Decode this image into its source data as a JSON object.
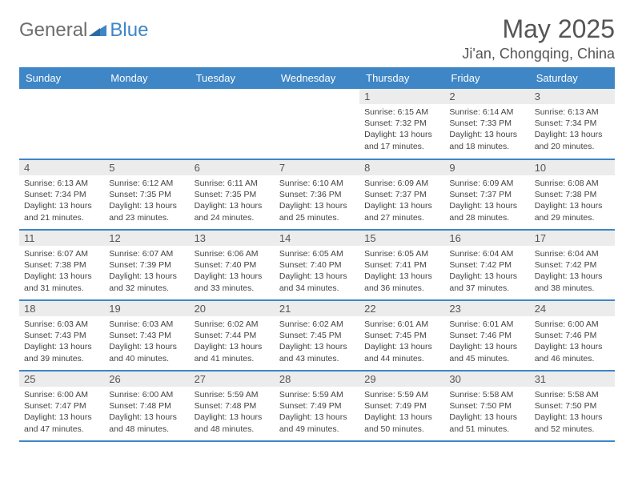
{
  "brand": {
    "part1": "General",
    "part2": "Blue"
  },
  "title": "May 2025",
  "location": "Ji'an, Chongqing, China",
  "colors": {
    "header_bg": "#3e86c6",
    "header_text": "#ffffff",
    "daynum_bg": "#ececec",
    "text": "#555555",
    "row_border": "#3e86c6",
    "background": "#ffffff"
  },
  "weekdays": [
    "Sunday",
    "Monday",
    "Tuesday",
    "Wednesday",
    "Thursday",
    "Friday",
    "Saturday"
  ],
  "weeks": [
    [
      {
        "n": "",
        "sr": "",
        "ss": "",
        "dl": ""
      },
      {
        "n": "",
        "sr": "",
        "ss": "",
        "dl": ""
      },
      {
        "n": "",
        "sr": "",
        "ss": "",
        "dl": ""
      },
      {
        "n": "",
        "sr": "",
        "ss": "",
        "dl": ""
      },
      {
        "n": "1",
        "sr": "Sunrise: 6:15 AM",
        "ss": "Sunset: 7:32 PM",
        "dl": "Daylight: 13 hours and 17 minutes."
      },
      {
        "n": "2",
        "sr": "Sunrise: 6:14 AM",
        "ss": "Sunset: 7:33 PM",
        "dl": "Daylight: 13 hours and 18 minutes."
      },
      {
        "n": "3",
        "sr": "Sunrise: 6:13 AM",
        "ss": "Sunset: 7:34 PM",
        "dl": "Daylight: 13 hours and 20 minutes."
      }
    ],
    [
      {
        "n": "4",
        "sr": "Sunrise: 6:13 AM",
        "ss": "Sunset: 7:34 PM",
        "dl": "Daylight: 13 hours and 21 minutes."
      },
      {
        "n": "5",
        "sr": "Sunrise: 6:12 AM",
        "ss": "Sunset: 7:35 PM",
        "dl": "Daylight: 13 hours and 23 minutes."
      },
      {
        "n": "6",
        "sr": "Sunrise: 6:11 AM",
        "ss": "Sunset: 7:35 PM",
        "dl": "Daylight: 13 hours and 24 minutes."
      },
      {
        "n": "7",
        "sr": "Sunrise: 6:10 AM",
        "ss": "Sunset: 7:36 PM",
        "dl": "Daylight: 13 hours and 25 minutes."
      },
      {
        "n": "8",
        "sr": "Sunrise: 6:09 AM",
        "ss": "Sunset: 7:37 PM",
        "dl": "Daylight: 13 hours and 27 minutes."
      },
      {
        "n": "9",
        "sr": "Sunrise: 6:09 AM",
        "ss": "Sunset: 7:37 PM",
        "dl": "Daylight: 13 hours and 28 minutes."
      },
      {
        "n": "10",
        "sr": "Sunrise: 6:08 AM",
        "ss": "Sunset: 7:38 PM",
        "dl": "Daylight: 13 hours and 29 minutes."
      }
    ],
    [
      {
        "n": "11",
        "sr": "Sunrise: 6:07 AM",
        "ss": "Sunset: 7:38 PM",
        "dl": "Daylight: 13 hours and 31 minutes."
      },
      {
        "n": "12",
        "sr": "Sunrise: 6:07 AM",
        "ss": "Sunset: 7:39 PM",
        "dl": "Daylight: 13 hours and 32 minutes."
      },
      {
        "n": "13",
        "sr": "Sunrise: 6:06 AM",
        "ss": "Sunset: 7:40 PM",
        "dl": "Daylight: 13 hours and 33 minutes."
      },
      {
        "n": "14",
        "sr": "Sunrise: 6:05 AM",
        "ss": "Sunset: 7:40 PM",
        "dl": "Daylight: 13 hours and 34 minutes."
      },
      {
        "n": "15",
        "sr": "Sunrise: 6:05 AM",
        "ss": "Sunset: 7:41 PM",
        "dl": "Daylight: 13 hours and 36 minutes."
      },
      {
        "n": "16",
        "sr": "Sunrise: 6:04 AM",
        "ss": "Sunset: 7:42 PM",
        "dl": "Daylight: 13 hours and 37 minutes."
      },
      {
        "n": "17",
        "sr": "Sunrise: 6:04 AM",
        "ss": "Sunset: 7:42 PM",
        "dl": "Daylight: 13 hours and 38 minutes."
      }
    ],
    [
      {
        "n": "18",
        "sr": "Sunrise: 6:03 AM",
        "ss": "Sunset: 7:43 PM",
        "dl": "Daylight: 13 hours and 39 minutes."
      },
      {
        "n": "19",
        "sr": "Sunrise: 6:03 AM",
        "ss": "Sunset: 7:43 PM",
        "dl": "Daylight: 13 hours and 40 minutes."
      },
      {
        "n": "20",
        "sr": "Sunrise: 6:02 AM",
        "ss": "Sunset: 7:44 PM",
        "dl": "Daylight: 13 hours and 41 minutes."
      },
      {
        "n": "21",
        "sr": "Sunrise: 6:02 AM",
        "ss": "Sunset: 7:45 PM",
        "dl": "Daylight: 13 hours and 43 minutes."
      },
      {
        "n": "22",
        "sr": "Sunrise: 6:01 AM",
        "ss": "Sunset: 7:45 PM",
        "dl": "Daylight: 13 hours and 44 minutes."
      },
      {
        "n": "23",
        "sr": "Sunrise: 6:01 AM",
        "ss": "Sunset: 7:46 PM",
        "dl": "Daylight: 13 hours and 45 minutes."
      },
      {
        "n": "24",
        "sr": "Sunrise: 6:00 AM",
        "ss": "Sunset: 7:46 PM",
        "dl": "Daylight: 13 hours and 46 minutes."
      }
    ],
    [
      {
        "n": "25",
        "sr": "Sunrise: 6:00 AM",
        "ss": "Sunset: 7:47 PM",
        "dl": "Daylight: 13 hours and 47 minutes."
      },
      {
        "n": "26",
        "sr": "Sunrise: 6:00 AM",
        "ss": "Sunset: 7:48 PM",
        "dl": "Daylight: 13 hours and 48 minutes."
      },
      {
        "n": "27",
        "sr": "Sunrise: 5:59 AM",
        "ss": "Sunset: 7:48 PM",
        "dl": "Daylight: 13 hours and 48 minutes."
      },
      {
        "n": "28",
        "sr": "Sunrise: 5:59 AM",
        "ss": "Sunset: 7:49 PM",
        "dl": "Daylight: 13 hours and 49 minutes."
      },
      {
        "n": "29",
        "sr": "Sunrise: 5:59 AM",
        "ss": "Sunset: 7:49 PM",
        "dl": "Daylight: 13 hours and 50 minutes."
      },
      {
        "n": "30",
        "sr": "Sunrise: 5:58 AM",
        "ss": "Sunset: 7:50 PM",
        "dl": "Daylight: 13 hours and 51 minutes."
      },
      {
        "n": "31",
        "sr": "Sunrise: 5:58 AM",
        "ss": "Sunset: 7:50 PM",
        "dl": "Daylight: 13 hours and 52 minutes."
      }
    ]
  ]
}
